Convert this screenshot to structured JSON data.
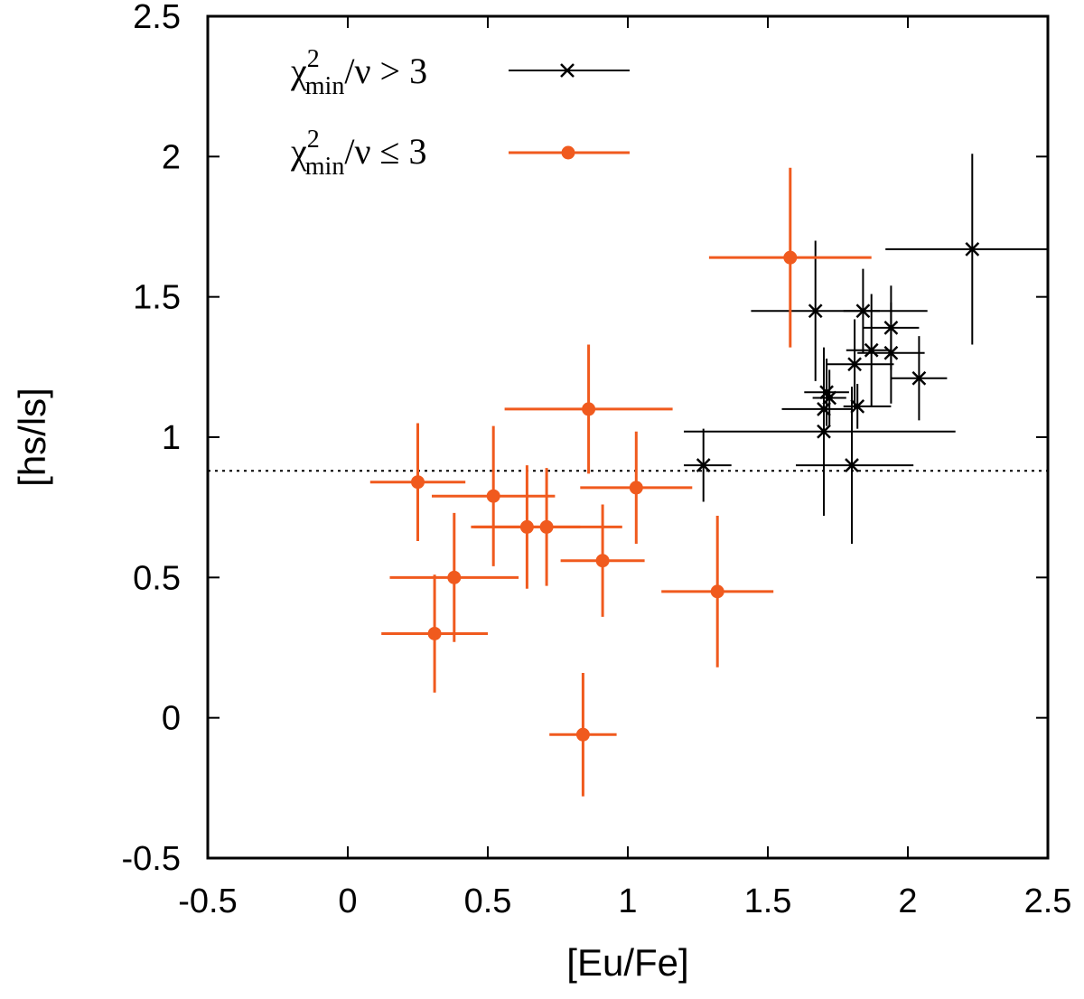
{
  "chart_data": {
    "type": "scatter",
    "title": "",
    "xlabel": "[Eu/Fe]",
    "ylabel": "[hs/ls]",
    "xlim": [
      -0.5,
      2.5
    ],
    "ylim": [
      -0.5,
      2.5
    ],
    "x_ticks": [
      "-0.5",
      "0",
      "0.5",
      "1",
      "1.5",
      "2",
      "2.5"
    ],
    "y_ticks": [
      "-0.5",
      "0",
      "0.5",
      "1",
      "1.5",
      "2",
      "2.5"
    ],
    "x_tick_values": [
      -0.5,
      0,
      0.5,
      1,
      1.5,
      2,
      2.5
    ],
    "y_tick_values": [
      -0.5,
      0,
      0.5,
      1,
      1.5,
      2,
      2.5
    ],
    "reference_line": {
      "y": 0.88,
      "style": "dotted"
    },
    "grid": false,
    "legend_position": "top-left",
    "series": [
      {
        "legend": {
          "chi": "χ",
          "sup": "2",
          "sub": "min",
          "rest": "/ν > 3"
        },
        "color": "#000000",
        "marker": "x",
        "points": [
          {
            "x": 1.27,
            "y": 0.9,
            "xerr": [
              0.07,
              0.1
            ],
            "yerr": [
              0.13,
              0.13
            ]
          },
          {
            "x": 1.67,
            "y": 1.45,
            "xerr": [
              0.23,
              0.4
            ],
            "yerr": [
              0.25,
              0.25
            ]
          },
          {
            "x": 1.7,
            "y": 1.02,
            "xerr": [
              0.5,
              0.47
            ],
            "yerr": [
              0.3,
              0.3
            ]
          },
          {
            "x": 1.7,
            "y": 1.1,
            "xerr": [
              0.15,
              0.1
            ],
            "yerr": [
              0.18,
              0.18
            ]
          },
          {
            "x": 1.71,
            "y": 1.16,
            "xerr": [
              0.08,
              0.08
            ],
            "yerr": [
              0.12,
              0.12
            ]
          },
          {
            "x": 1.72,
            "y": 1.14,
            "xerr": [
              0.06,
              0.06
            ],
            "yerr": [
              0.1,
              0.1
            ]
          },
          {
            "x": 1.8,
            "y": 0.9,
            "xerr": [
              0.2,
              0.22
            ],
            "yerr": [
              0.28,
              0.28
            ]
          },
          {
            "x": 1.81,
            "y": 1.26,
            "xerr": [
              0.1,
              0.14
            ],
            "yerr": [
              0.16,
              0.16
            ]
          },
          {
            "x": 1.82,
            "y": 1.11,
            "xerr": [
              0.05,
              0.12
            ],
            "yerr": [
              0.08,
              0.08
            ]
          },
          {
            "x": 1.84,
            "y": 1.45,
            "xerr": [
              0.07,
              0.06
            ],
            "yerr": [
              0.15,
              0.15
            ]
          },
          {
            "x": 1.87,
            "y": 1.31,
            "xerr": [
              0.09,
              0.07
            ],
            "yerr": [
              0.2,
              0.2
            ]
          },
          {
            "x": 1.94,
            "y": 1.39,
            "xerr": [
              0.1,
              0.1
            ],
            "yerr": [
              0.15,
              0.15
            ]
          },
          {
            "x": 1.94,
            "y": 1.3,
            "xerr": [
              0.12,
              0.12
            ],
            "yerr": [
              0.18,
              0.18
            ]
          },
          {
            "x": 2.04,
            "y": 1.21,
            "xerr": [
              0.1,
              0.1
            ],
            "yerr": [
              0.15,
              0.15
            ]
          },
          {
            "x": 2.23,
            "y": 1.67,
            "xerr": [
              0.31,
              0.3
            ],
            "yerr": [
              0.34,
              0.34
            ]
          }
        ]
      },
      {
        "legend": {
          "chi": "χ",
          "sup": "2",
          "sub": "min",
          "rest": "/ν ≤ 3"
        },
        "color": "#f05a1e",
        "marker": "circle",
        "points": [
          {
            "x": 0.25,
            "y": 0.84,
            "xerr": [
              0.17,
              0.17
            ],
            "yerr": [
              0.21,
              0.21
            ]
          },
          {
            "x": 0.31,
            "y": 0.3,
            "xerr": [
              0.19,
              0.19
            ],
            "yerr": [
              0.21,
              0.21
            ]
          },
          {
            "x": 0.38,
            "y": 0.5,
            "xerr": [
              0.23,
              0.23
            ],
            "yerr": [
              0.23,
              0.23
            ]
          },
          {
            "x": 0.52,
            "y": 0.79,
            "xerr": [
              0.22,
              0.22
            ],
            "yerr": [
              0.25,
              0.25
            ]
          },
          {
            "x": 0.64,
            "y": 0.68,
            "xerr": [
              0.19,
              0.19
            ],
            "yerr": [
              0.22,
              0.22
            ]
          },
          {
            "x": 0.71,
            "y": 0.68,
            "xerr": [
              0.27,
              0.27
            ],
            "yerr": [
              0.21,
              0.21
            ]
          },
          {
            "x": 0.84,
            "y": -0.06,
            "xerr": [
              0.12,
              0.12
            ],
            "yerr": [
              0.22,
              0.22
            ]
          },
          {
            "x": 0.86,
            "y": 1.1,
            "xerr": [
              0.3,
              0.3
            ],
            "yerr": [
              0.23,
              0.23
            ]
          },
          {
            "x": 0.91,
            "y": 0.56,
            "xerr": [
              0.15,
              0.15
            ],
            "yerr": [
              0.2,
              0.2
            ]
          },
          {
            "x": 1.03,
            "y": 0.82,
            "xerr": [
              0.2,
              0.2
            ],
            "yerr": [
              0.2,
              0.2
            ]
          },
          {
            "x": 1.32,
            "y": 0.45,
            "xerr": [
              0.2,
              0.2
            ],
            "yerr": [
              0.27,
              0.27
            ]
          },
          {
            "x": 1.58,
            "y": 1.64,
            "xerr": [
              0.29,
              0.29
            ],
            "yerr": [
              0.32,
              0.32
            ]
          }
        ]
      }
    ]
  }
}
